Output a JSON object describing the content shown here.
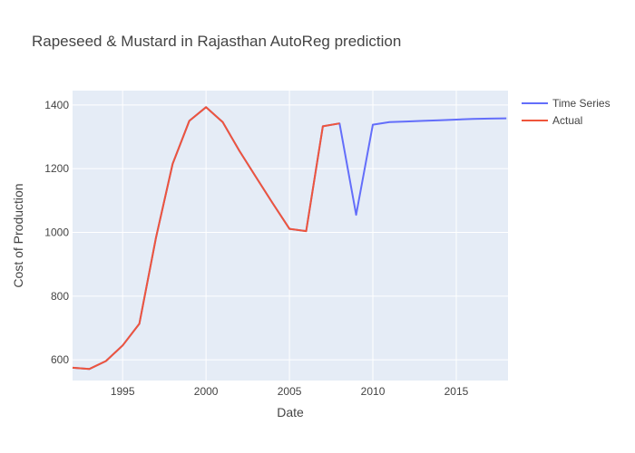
{
  "chart_data": {
    "type": "line",
    "title": "Rapeseed & Mustard in Rajasthan AutoReg prediction",
    "xlabel": "Date",
    "ylabel": "Cost of Production",
    "xlim": [
      1992,
      2018.1
    ],
    "ylim": [
      535,
      1445
    ],
    "x_ticks": [
      1995,
      2000,
      2005,
      2010,
      2015
    ],
    "y_ticks": [
      600,
      800,
      1000,
      1200,
      1400
    ],
    "grid": true,
    "legend_position": "top-right",
    "series": [
      {
        "name": "Time Series",
        "color": "#636efa",
        "x": [
          1992,
          1993,
          1994,
          1995,
          1996,
          1997,
          1998,
          1999,
          2000,
          2001,
          2002,
          2003,
          2004,
          2005,
          2006,
          2007,
          2008,
          2009,
          2010,
          2011,
          2012,
          2013,
          2014,
          2015,
          2016,
          2017,
          2018
        ],
        "y": [
          575,
          571,
          596,
          645,
          713,
          984,
          1215,
          1350,
          1393,
          1346,
          1256,
          1173,
          1091,
          1011,
          1004,
          1333,
          1342,
          1055,
          1338,
          1346,
          1348,
          1350,
          1352,
          1354,
          1356,
          1357,
          1358
        ]
      },
      {
        "name": "Actual",
        "color": "#ef553b",
        "x": [
          1992,
          1993,
          1994,
          1995,
          1996,
          1997,
          1998,
          1999,
          2000,
          2001,
          2002,
          2003,
          2004,
          2005,
          2006,
          2007,
          2008
        ],
        "y": [
          575,
          571,
          596,
          645,
          713,
          984,
          1215,
          1350,
          1393,
          1346,
          1256,
          1173,
          1091,
          1011,
          1004,
          1333,
          1342
        ]
      }
    ]
  }
}
